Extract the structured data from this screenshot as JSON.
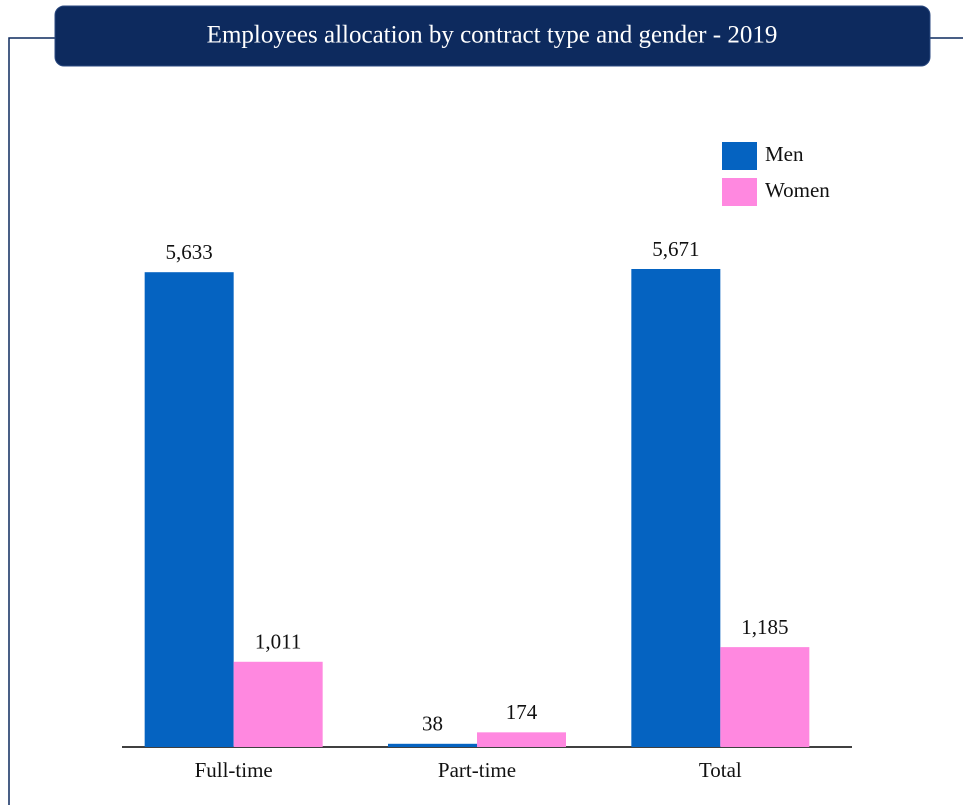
{
  "chart_data": {
    "type": "bar",
    "title": "Employees allocation by contract type and gender - 2019",
    "categories": [
      "Full-time",
      "Part-time",
      "Total"
    ],
    "series": [
      {
        "name": "Men",
        "color": "#0563c1",
        "values": [
          5633,
          38,
          5671
        ],
        "value_labels": [
          "5,633",
          "38",
          "5,671"
        ]
      },
      {
        "name": "Women",
        "color": "#ff88e0",
        "values": [
          1011,
          174,
          1185
        ],
        "value_labels": [
          "1,011",
          "174",
          "1,185"
        ]
      }
    ],
    "legend": "top-right"
  }
}
